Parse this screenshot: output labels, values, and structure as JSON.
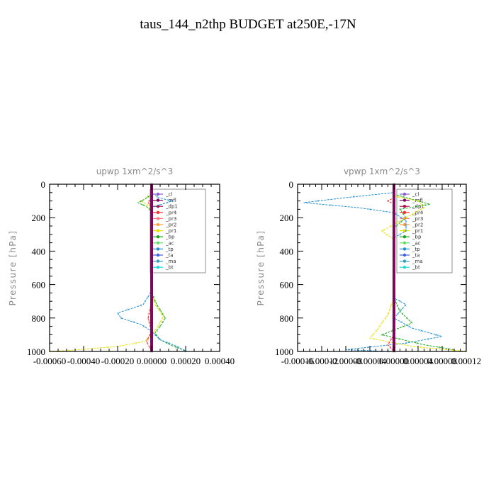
{
  "figure": {
    "title": "taus_144_n2thp  BUDGET at250E,-17N"
  },
  "legend_entries": [
    {
      "label": "_cl",
      "color": "#8b5fd0"
    },
    {
      "label": "_mfl",
      "color": "#7a0a5a"
    },
    {
      "label": "_dp1",
      "color": "#b0104a"
    },
    {
      "label": "_pr4",
      "color": "#ff3030"
    },
    {
      "label": "_pr3",
      "color": "#ff7a7a"
    },
    {
      "label": "_pr2",
      "color": "#ffa040"
    },
    {
      "label": "_pr1",
      "color": "#e8e000"
    },
    {
      "label": "_bp",
      "color": "#1aa51a"
    },
    {
      "label": "_ac",
      "color": "#66dd66"
    },
    {
      "label": "_tp",
      "color": "#1f8fd0"
    },
    {
      "label": "_ta",
      "color": "#4060e0"
    },
    {
      "label": "_ma",
      "color": "#30a0c0"
    },
    {
      "label": "_bt",
      "color": "#22d8e0"
    }
  ],
  "chart_data": [
    {
      "type": "line",
      "title": "upwp   1xm^2/s^3",
      "ylabel": "Pressure [hPa]",
      "xlim": [
        -0.0006,
        0.0004
      ],
      "ylim": [
        1000,
        0
      ],
      "y_reversed": true,
      "xticks": [
        -0.0006,
        -0.0004,
        -0.0002,
        0.0,
        0.0002,
        0.0004
      ],
      "xtick_labels": [
        "-0.00060",
        "-0.00040",
        "-0.00020",
        "0.00000",
        "0.00020",
        "0.00040"
      ],
      "yticks": [
        0,
        200,
        400,
        600,
        800,
        1000
      ],
      "ytick_labels": [
        "0",
        "200",
        "400",
        "600",
        "800",
        "1000"
      ],
      "legend_position": "top-right",
      "series": [
        {
          "name": "_pr1",
          "color": "#e8e000",
          "points": [
            [
              0,
              0
            ],
            [
              0,
              60
            ],
            [
              -3e-05,
              80
            ],
            [
              -6e-05,
              100
            ],
            [
              -2e-05,
              130
            ],
            [
              0,
              160
            ],
            [
              0,
              650
            ],
            [
              2e-05,
              720
            ],
            [
              7e-05,
              790
            ],
            [
              3e-05,
              860
            ],
            [
              0,
              900
            ],
            [
              -4e-05,
              940
            ],
            [
              -0.0002,
              970
            ],
            [
              -0.0005,
              995
            ],
            [
              -0.0006,
              1000
            ]
          ]
        },
        {
          "name": "_bp",
          "color": "#1aa51a",
          "points": [
            [
              0,
              0
            ],
            [
              0,
              60
            ],
            [
              -4e-05,
              90
            ],
            [
              -8e-05,
              110
            ],
            [
              -2e-05,
              140
            ],
            [
              0,
              170
            ],
            [
              0,
              650
            ],
            [
              3e-05,
              720
            ],
            [
              8e-05,
              800
            ],
            [
              5e-05,
              850
            ],
            [
              2e-05,
              890
            ],
            [
              5e-05,
              930
            ],
            [
              0.00013,
              970
            ],
            [
              0.0002,
              995
            ]
          ]
        },
        {
          "name": "_tp",
          "color": "#1f8fd0",
          "points": [
            [
              0,
              0
            ],
            [
              0,
              50
            ],
            [
              4e-05,
              80
            ],
            [
              0.00012,
              100
            ],
            [
              6e-05,
              120
            ],
            [
              0,
              140
            ],
            [
              0,
              640
            ],
            [
              -5e-05,
              720
            ],
            [
              -0.0002,
              770
            ],
            [
              -0.00018,
              800
            ],
            [
              -6e-05,
              840
            ],
            [
              0,
              880
            ],
            [
              5e-05,
              930
            ],
            [
              0.00015,
              970
            ],
            [
              0.0002,
              1000
            ]
          ]
        },
        {
          "name": "_pr4",
          "color": "#ff3030",
          "points": [
            [
              0,
              0
            ],
            [
              0,
              80
            ],
            [
              -2e-05,
              110
            ],
            [
              0,
              140
            ],
            [
              0,
              700
            ],
            [
              -2e-05,
              800
            ],
            [
              0,
              880
            ],
            [
              -3e-05,
              940
            ],
            [
              0,
              1000
            ]
          ]
        },
        {
          "name": "_dp1",
          "color": "#b0104a",
          "points": [
            [
              0,
              0
            ],
            [
              0,
              1000
            ]
          ]
        },
        {
          "name": "_mfl",
          "color": "#7a0a5a",
          "points": [
            [
              0,
              0
            ],
            [
              0,
              1000
            ]
          ]
        }
      ]
    },
    {
      "type": "line",
      "title": "vpwp   1xm^2/s^3",
      "ylabel": "Pressure [hPa]",
      "xlim": [
        -0.00016,
        0.00012
      ],
      "ylim": [
        1000,
        0
      ],
      "y_reversed": true,
      "xticks": [
        -0.00016,
        -0.00012,
        -8e-05,
        -4e-05,
        0.0,
        4e-05,
        8e-05,
        0.00012
      ],
      "xtick_labels": [
        "-0.00016",
        "-0.00012",
        "-0.00008",
        "-0.00004",
        "0.00000",
        "0.00004",
        "0.00008",
        "0.00012"
      ],
      "yticks": [
        0,
        200,
        400,
        600,
        800,
        1000
      ],
      "ytick_labels": [
        "0",
        "200",
        "400",
        "600",
        "800",
        "1000"
      ],
      "legend_position": "top-right",
      "series": [
        {
          "name": "_tp",
          "color": "#1f8fd0",
          "points": [
            [
              0,
              0
            ],
            [
              0,
              50
            ],
            [
              -8e-05,
              80
            ],
            [
              -0.00015,
              110
            ],
            [
              -6e-05,
              140
            ],
            [
              0,
              170
            ],
            [
              2e-05,
              220
            ],
            [
              2e-05,
              280
            ],
            [
              0,
              320
            ],
            [
              0,
              680
            ],
            [
              2e-05,
              720
            ],
            [
              0,
              800
            ],
            [
              3e-05,
              860
            ],
            [
              8e-05,
              910
            ],
            [
              2e-05,
              950
            ],
            [
              -8e-05,
              990
            ],
            [
              -1e-05,
              1000
            ]
          ]
        },
        {
          "name": "_bp",
          "color": "#1aa51a",
          "points": [
            [
              0,
              0
            ],
            [
              0,
              60
            ],
            [
              3e-05,
              90
            ],
            [
              6e-05,
              120
            ],
            [
              1e-05,
              150
            ],
            [
              2e-05,
              200
            ],
            [
              0,
              260
            ],
            [
              0,
              680
            ],
            [
              1e-05,
              760
            ],
            [
              3e-05,
              830
            ],
            [
              -2e-05,
              900
            ],
            [
              5e-05,
              960
            ],
            [
              0.0001,
              990
            ]
          ]
        },
        {
          "name": "_pr1",
          "color": "#e8e000",
          "points": [
            [
              0,
              0
            ],
            [
              0,
              70
            ],
            [
              4e-05,
              100
            ],
            [
              5e-05,
              140
            ],
            [
              2e-05,
              200
            ],
            [
              -2e-05,
              280
            ],
            [
              0,
              330
            ],
            [
              0,
              680
            ],
            [
              -1e-05,
              780
            ],
            [
              -3e-05,
              880
            ],
            [
              -4e-05,
              920
            ],
            [
              3e-05,
              970
            ],
            [
              0.00012,
              1000
            ]
          ]
        },
        {
          "name": "_pr4",
          "color": "#ff3030",
          "points": [
            [
              0,
              0
            ],
            [
              0,
              80
            ],
            [
              -1e-05,
              100
            ],
            [
              0,
              120
            ],
            [
              0,
              900
            ],
            [
              -1e-05,
              960
            ],
            [
              0,
              1000
            ]
          ]
        },
        {
          "name": "_dp1",
          "color": "#b0104a",
          "points": [
            [
              0,
              0
            ],
            [
              0,
              1000
            ]
          ]
        },
        {
          "name": "_mfl",
          "color": "#7a0a5a",
          "points": [
            [
              0,
              0
            ],
            [
              0,
              1000
            ]
          ]
        }
      ]
    }
  ]
}
